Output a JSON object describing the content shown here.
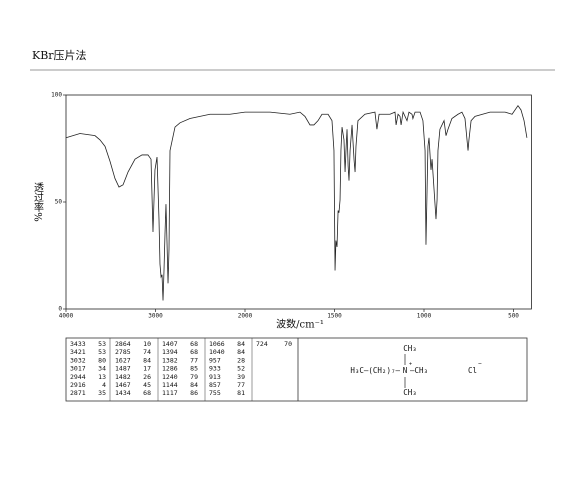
{
  "header": {
    "title": "KBr压片法"
  },
  "chart_data": {
    "type": "line",
    "color": "#222",
    "x": [
      4000,
      3844,
      3676,
      3620,
      3564,
      3508,
      3453,
      3408,
      3363,
      3307,
      3229,
      3151,
      3084,
      3050,
      3028,
      3006,
      2983,
      2961,
      2950,
      2938,
      2927,
      2916,
      2905,
      2894,
      2883,
      2872,
      2860,
      2849,
      2838,
      2782,
      2726,
      2615,
      2391,
      2168,
      2000,
      1860,
      1749,
      1693,
      1665,
      1637,
      1615,
      1592,
      1570,
      1536,
      1514,
      1503,
      1497,
      1492,
      1486,
      1480,
      1475,
      1469,
      1464,
      1458,
      1447,
      1441,
      1436,
      1430,
      1424,
      1419,
      1413,
      1402,
      1391,
      1385,
      1380,
      1369,
      1330,
      1274,
      1263,
      1251,
      1190,
      1162,
      1156,
      1145,
      1134,
      1128,
      1117,
      1095,
      1084,
      1067,
      1062,
      1050,
      1022,
      1006,
      994,
      989,
      983,
      978,
      972,
      961,
      955,
      944,
      933,
      927,
      922,
      911,
      888,
      877,
      866,
      844,
      810,
      788,
      771,
      754,
      749,
      737,
      715,
      631,
      547,
      508,
      475,
      458,
      441,
      425
    ],
    "values": [
      80,
      82,
      81,
      79,
      76,
      69,
      61,
      57,
      58,
      64,
      70,
      72,
      72,
      70,
      36,
      65,
      71,
      42,
      21,
      15,
      16,
      4,
      18,
      35,
      49,
      32,
      12,
      28,
      74,
      85,
      87,
      89,
      91,
      91,
      92,
      92,
      91,
      92,
      90,
      86,
      86,
      88,
      91,
      91,
      88,
      74,
      18,
      32,
      29,
      46,
      45,
      51,
      74,
      85,
      79,
      64,
      74,
      84,
      67,
      60,
      74,
      86,
      70,
      64,
      76,
      88,
      91,
      92,
      84,
      91,
      91,
      92,
      86,
      91,
      90,
      86,
      92,
      88,
      92,
      91,
      89,
      92,
      92,
      88,
      74,
      30,
      55,
      76,
      80,
      65,
      70,
      56,
      42,
      51,
      74,
      84,
      88,
      81,
      84,
      89,
      91,
      92,
      89,
      74,
      79,
      88,
      90,
      92,
      92,
      91,
      95,
      93,
      88,
      80
    ],
    "xlim": [
      4000,
      400
    ],
    "ylim": [
      0,
      100
    ],
    "xticks": [
      4000,
      3000,
      2000,
      1500,
      1000,
      500
    ],
    "yticks": [
      0,
      50,
      100
    ],
    "xlabel": "波数/cm⁻¹",
    "ylabel": "透过率%"
  },
  "peak_table": {
    "columns": [
      [
        [
          3433,
          53
        ],
        [
          3421,
          53
        ],
        [
          3032,
          80
        ],
        [
          3017,
          34
        ],
        [
          2944,
          13
        ],
        [
          2916,
          4
        ],
        [
          2871,
          35
        ]
      ],
      [
        [
          2864,
          10
        ],
        [
          2785,
          74
        ],
        [
          1627,
          84
        ],
        [
          1487,
          17
        ],
        [
          1482,
          26
        ],
        [
          1467,
          45
        ],
        [
          1434,
          68
        ]
      ],
      [
        [
          1407,
          68
        ],
        [
          1394,
          68
        ],
        [
          1382,
          77
        ],
        [
          1286,
          85
        ],
        [
          1240,
          79
        ],
        [
          1144,
          84
        ],
        [
          1117,
          86
        ]
      ],
      [
        [
          1066,
          84
        ],
        [
          1040,
          84
        ],
        [
          957,
          28
        ],
        [
          933,
          52
        ],
        [
          913,
          39
        ],
        [
          857,
          77
        ],
        [
          755,
          81
        ]
      ],
      [
        [
          724,
          70
        ]
      ]
    ]
  },
  "structure": {
    "top": "CH₃",
    "left": "H₃C—(CH₂)₇—",
    "center": "N",
    "charge": "+",
    "right": "—CH₃",
    "bottom": "CH₃",
    "anion": "Cl",
    "anion_charge": "−"
  }
}
